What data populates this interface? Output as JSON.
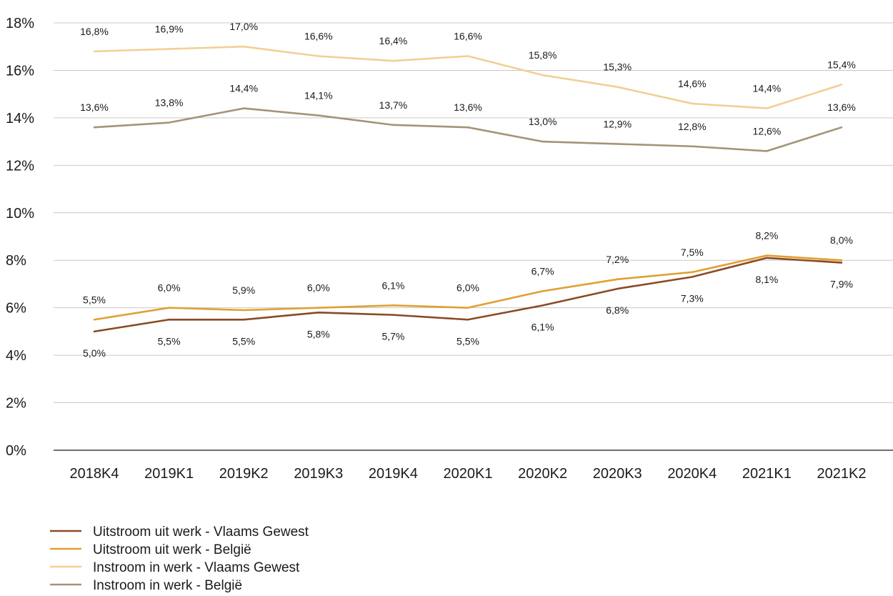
{
  "chart_data": {
    "type": "line",
    "title": "",
    "xlabel": "",
    "ylabel": "",
    "ylim": [
      0,
      18
    ],
    "y_ticks": [
      0,
      2,
      4,
      6,
      8,
      10,
      12,
      14,
      16,
      18
    ],
    "y_tick_labels": [
      "0%",
      "2%",
      "4%",
      "6%",
      "8%",
      "10%",
      "12%",
      "14%",
      "16%",
      "18%"
    ],
    "grid": "horizontal",
    "legend_position": "bottom-left",
    "categories": [
      "2018K4",
      "2019K1",
      "2019K2",
      "2019K3",
      "2019K4",
      "2020K1",
      "2020K2",
      "2020K3",
      "2020K4",
      "2021K1",
      "2021K2"
    ],
    "series": [
      {
        "name": "Uitstroom uit werk - Vlaams Gewest",
        "color": "#8b4a23",
        "label_side": "below",
        "values": [
          5.0,
          5.5,
          5.5,
          5.8,
          5.7,
          5.5,
          6.1,
          6.8,
          7.3,
          8.1,
          7.9
        ],
        "labels": [
          "5,0%",
          "5,5%",
          "5,5%",
          "5,8%",
          "5,7%",
          "5,5%",
          "6,1%",
          "6,8%",
          "7,3%",
          "8,1%",
          "7,9%"
        ]
      },
      {
        "name": "Uitstroom uit werk - België",
        "color": "#e0a030",
        "label_side": "above",
        "values": [
          5.5,
          6.0,
          5.9,
          6.0,
          6.1,
          6.0,
          6.7,
          7.2,
          7.5,
          8.2,
          8.0
        ],
        "labels": [
          "5,5%",
          "6,0%",
          "5,9%",
          "6,0%",
          "6,1%",
          "6,0%",
          "6,7%",
          "7,2%",
          "7,5%",
          "8,2%",
          "8,0%"
        ]
      },
      {
        "name": "Instroom in werk - Vlaams Gewest",
        "color": "#f2cf94",
        "label_side": "above",
        "values": [
          16.8,
          16.9,
          17.0,
          16.6,
          16.4,
          16.6,
          15.8,
          15.3,
          14.6,
          14.4,
          15.4
        ],
        "labels": [
          "16,8%",
          "16,9%",
          "17,0%",
          "16,6%",
          "16,4%",
          "16,6%",
          "15,8%",
          "15,3%",
          "14,6%",
          "14,4%",
          "15,4%"
        ]
      },
      {
        "name": "Instroom in werk - België",
        "color": "#a49378",
        "label_side": "above",
        "values": [
          13.6,
          13.8,
          14.4,
          14.1,
          13.7,
          13.6,
          13.0,
          12.9,
          12.8,
          12.6,
          13.6
        ],
        "labels": [
          "13,6%",
          "13,8%",
          "14,4%",
          "14,1%",
          "13,7%",
          "13,6%",
          "13,0%",
          "12,9%",
          "12,8%",
          "12,6%",
          "13,6%"
        ]
      }
    ]
  }
}
